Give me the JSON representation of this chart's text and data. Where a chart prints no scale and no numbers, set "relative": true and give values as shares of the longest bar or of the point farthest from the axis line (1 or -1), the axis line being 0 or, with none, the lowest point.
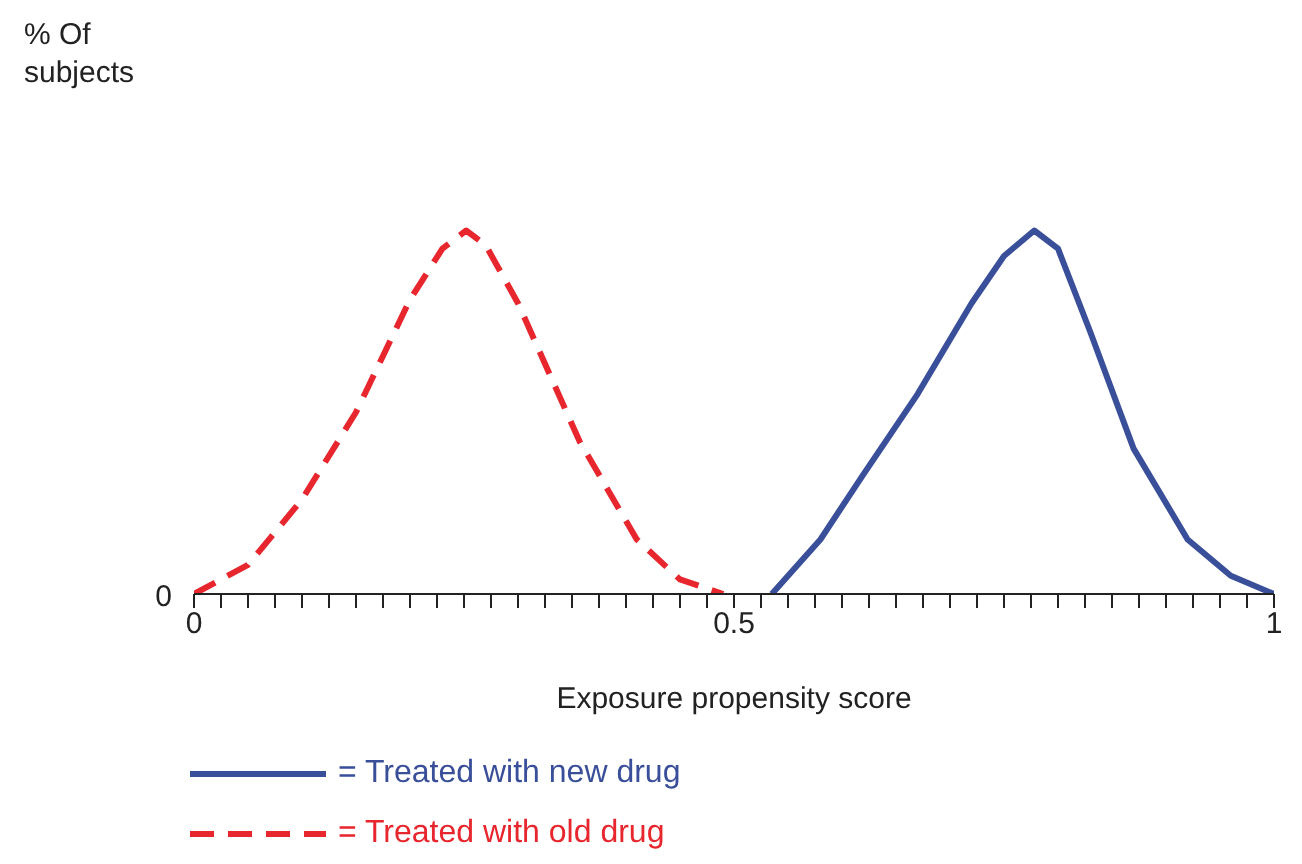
{
  "chart_data": {
    "type": "line",
    "relative": true,
    "xlabel": "Exposure propensity score",
    "ylabel": "% Of subjects",
    "annotations": [
      "0"
    ],
    "xlim": [
      0,
      1
    ],
    "xticks": [
      0,
      {
        "value": 0.025,
        "label": null
      },
      {
        "value": 0.05,
        "label": null
      },
      {
        "value": 0.075,
        "label": null
      },
      {
        "value": 0.1,
        "label": null
      },
      {
        "value": 0.125,
        "label": null
      },
      {
        "value": 0.15,
        "label": null
      },
      {
        "value": 0.175,
        "label": null
      },
      {
        "value": 0.2,
        "label": null
      },
      {
        "value": 0.225,
        "label": null
      },
      {
        "value": 0.25,
        "label": null
      },
      {
        "value": 0.275,
        "label": null
      },
      {
        "value": 0.3,
        "label": null
      },
      {
        "value": 0.325,
        "label": null
      },
      {
        "value": 0.35,
        "label": null
      },
      {
        "value": 0.375,
        "label": null
      },
      {
        "value": 0.4,
        "label": null
      },
      {
        "value": 0.425,
        "label": null
      },
      {
        "value": 0.45,
        "label": null
      },
      {
        "value": 0.475,
        "label": null
      },
      0.5,
      {
        "value": 0.525,
        "label": null
      },
      {
        "value": 0.55,
        "label": null
      },
      {
        "value": 0.575,
        "label": null
      },
      {
        "value": 0.6,
        "label": null
      },
      {
        "value": 0.625,
        "label": null
      },
      {
        "value": 0.65,
        "label": null
      },
      {
        "value": 0.675,
        "label": null
      },
      {
        "value": 0.7,
        "label": null
      },
      {
        "value": 0.725,
        "label": null
      },
      {
        "value": 0.75,
        "label": null
      },
      {
        "value": 0.775,
        "label": null
      },
      {
        "value": 0.8,
        "label": null
      },
      {
        "value": 0.825,
        "label": null
      },
      {
        "value": 0.85,
        "label": null
      },
      {
        "value": 0.875,
        "label": null
      },
      {
        "value": 0.9,
        "label": null
      },
      {
        "value": 0.925,
        "label": null
      },
      {
        "value": 0.95,
        "label": null
      },
      {
        "value": 0.975,
        "label": null
      },
      1
    ],
    "legend": "bottom",
    "marker": "none",
    "series": [
      {
        "name": "= Treated with new drug",
        "color": "#3a4f9a",
        "line_style": "solid",
        "x": [
          0.535,
          0.58,
          0.62,
          0.67,
          0.72,
          0.75,
          0.778,
          0.8,
          0.83,
          0.87,
          0.92,
          0.96,
          1.0
        ],
        "values": [
          0,
          0.15,
          0.33,
          0.55,
          0.8,
          0.93,
          1.0,
          0.95,
          0.72,
          0.4,
          0.15,
          0.05,
          0
        ]
      },
      {
        "name": "= Treated with old drug",
        "color": "#e8262d",
        "line_style": "dashed",
        "x": [
          0,
          0.05,
          0.1,
          0.15,
          0.2,
          0.23,
          0.252,
          0.27,
          0.3,
          0.357,
          0.41,
          0.45,
          0.49
        ],
        "values": [
          0,
          0.08,
          0.26,
          0.5,
          0.81,
          0.95,
          1.0,
          0.96,
          0.8,
          0.42,
          0.15,
          0.04,
          0
        ]
      }
    ]
  }
}
